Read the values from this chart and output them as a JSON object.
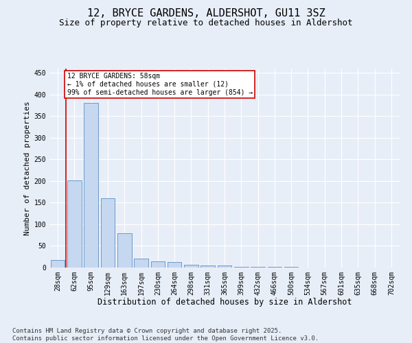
{
  "title": "12, BRYCE GARDENS, ALDERSHOT, GU11 3SZ",
  "subtitle": "Size of property relative to detached houses in Aldershot",
  "xlabel": "Distribution of detached houses by size in Aldershot",
  "ylabel": "Number of detached properties",
  "categories": [
    "28sqm",
    "62sqm",
    "95sqm",
    "129sqm",
    "163sqm",
    "197sqm",
    "230sqm",
    "264sqm",
    "298sqm",
    "331sqm",
    "365sqm",
    "399sqm",
    "432sqm",
    "466sqm",
    "500sqm",
    "534sqm",
    "567sqm",
    "601sqm",
    "635sqm",
    "668sqm",
    "702sqm"
  ],
  "values": [
    17,
    201,
    380,
    160,
    80,
    20,
    15,
    12,
    7,
    5,
    4,
    2,
    1,
    1,
    1,
    0,
    0,
    0,
    0,
    0,
    0
  ],
  "bar_color": "#c5d8f0",
  "bar_edge_color": "#5b8ec4",
  "highlight_color": "#cc0000",
  "annotation_text": "12 BRYCE GARDENS: 58sqm\n← 1% of detached houses are smaller (12)\n99% of semi-detached houses are larger (854) →",
  "annotation_box_color": "#cc0000",
  "ylim": [
    0,
    460
  ],
  "yticks": [
    0,
    50,
    100,
    150,
    200,
    250,
    300,
    350,
    400,
    450
  ],
  "bg_color": "#e8eef8",
  "plot_bg_color": "#e8eef8",
  "footer1": "Contains HM Land Registry data © Crown copyright and database right 2025.",
  "footer2": "Contains public sector information licensed under the Open Government Licence v3.0.",
  "title_fontsize": 11,
  "subtitle_fontsize": 9,
  "xlabel_fontsize": 8.5,
  "ylabel_fontsize": 8,
  "tick_fontsize": 7,
  "annotation_fontsize": 7,
  "footer_fontsize": 6.5
}
